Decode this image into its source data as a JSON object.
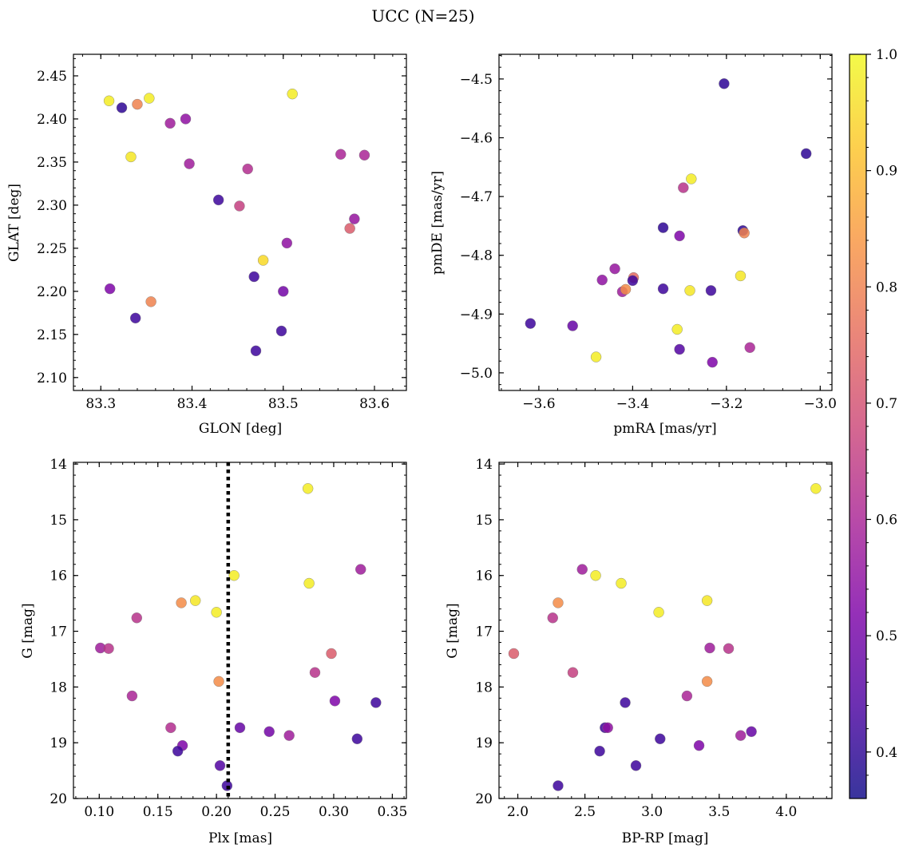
{
  "title": "UCC (N=25)",
  "colorbar": {
    "vmin": 0.36,
    "vmax": 1.0,
    "ticks": [
      "0.4",
      "0.5",
      "0.6",
      "0.7",
      "0.8",
      "0.9",
      "1.0"
    ],
    "tick_values": [
      0.4,
      0.5,
      0.6,
      0.7,
      0.8,
      0.9,
      1.0
    ],
    "colormap": "plasma"
  },
  "chart_data": [
    {
      "type": "scatter",
      "xlabel": "GLON [deg]",
      "ylabel": "GLAT [deg]",
      "xlim": [
        83.27,
        83.635
      ],
      "ylim": [
        2.085,
        2.475
      ],
      "xticks": [
        83.3,
        83.4,
        83.5,
        83.6
      ],
      "xtick_labels": [
        "83.3",
        "83.4",
        "83.5",
        "83.6"
      ],
      "yticks": [
        2.1,
        2.15,
        2.2,
        2.25,
        2.3,
        2.35,
        2.4,
        2.45
      ],
      "ytick_labels": [
        "2.10",
        "2.15",
        "2.20",
        "2.25",
        "2.30",
        "2.35",
        "2.40",
        "2.45"
      ],
      "x": [
        83.309,
        83.323,
        83.34,
        83.353,
        83.333,
        83.376,
        83.393,
        83.397,
        83.31,
        83.338,
        83.355,
        83.429,
        83.452,
        83.461,
        83.468,
        83.47,
        83.478,
        83.498,
        83.5,
        83.504,
        83.51,
        83.563,
        83.573,
        83.578,
        83.589
      ],
      "y": [
        2.421,
        2.413,
        2.417,
        2.424,
        2.356,
        2.395,
        2.4,
        2.348,
        2.203,
        2.169,
        2.188,
        2.306,
        2.299,
        2.342,
        2.217,
        2.131,
        2.236,
        2.154,
        2.2,
        2.256,
        2.429,
        2.359,
        2.273,
        2.284,
        2.358
      ],
      "c": [
        0.98,
        0.4,
        0.8,
        0.98,
        0.97,
        0.58,
        0.55,
        0.58,
        0.52,
        0.42,
        0.8,
        0.42,
        0.66,
        0.62,
        0.42,
        0.42,
        0.95,
        0.42,
        0.5,
        0.55,
        0.98,
        0.6,
        0.72,
        0.56,
        0.6
      ]
    },
    {
      "type": "scatter",
      "xlabel": "pmRA [mas/yr]",
      "ylabel": "pmDE [mas/yr]",
      "xlim": [
        -3.685,
        -2.975
      ],
      "ylim": [
        -5.03,
        -4.458
      ],
      "xticks": [
        -3.6,
        -3.4,
        -3.2,
        -3.0
      ],
      "xtick_labels": [
        "−3.6",
        "−3.4",
        "−3.2",
        "−3.0"
      ],
      "yticks": [
        -5.0,
        -4.9,
        -4.8,
        -4.7,
        -4.6,
        -4.5
      ],
      "ytick_labels": [
        "−5.0",
        "−4.9",
        "−4.8",
        "−4.7",
        "−4.6",
        "−4.5"
      ],
      "x": [
        -3.205,
        -3.03,
        -3.275,
        -3.292,
        -3.165,
        -3.162,
        -3.335,
        -3.3,
        -3.438,
        -3.465,
        -3.422,
        -3.415,
        -3.398,
        -3.4,
        -3.335,
        -3.278,
        -3.233,
        -3.17,
        -3.618,
        -3.528,
        -3.305,
        -3.478,
        -3.3,
        -3.23,
        -3.15
      ],
      "y": [
        -4.508,
        -4.627,
        -4.67,
        -4.685,
        -4.758,
        -4.762,
        -4.753,
        -4.767,
        -4.823,
        -4.842,
        -4.862,
        -4.858,
        -4.838,
        -4.843,
        -4.857,
        -4.86,
        -4.86,
        -4.835,
        -4.916,
        -4.92,
        -4.926,
        -4.973,
        -4.96,
        -4.982,
        -4.957
      ],
      "c": [
        0.4,
        0.4,
        0.98,
        0.63,
        0.4,
        0.8,
        0.4,
        0.52,
        0.56,
        0.55,
        0.58,
        0.82,
        0.75,
        0.42,
        0.42,
        0.97,
        0.42,
        0.97,
        0.42,
        0.48,
        0.98,
        0.98,
        0.45,
        0.52,
        0.6
      ]
    },
    {
      "type": "scatter",
      "xlabel": "Plx [mas]",
      "ylabel": "G [mag]",
      "xlim": [
        0.078,
        0.362
      ],
      "ylim": [
        20.0,
        13.97
      ],
      "y_inverted": true,
      "xticks": [
        0.1,
        0.15,
        0.2,
        0.25,
        0.3,
        0.35
      ],
      "xtick_labels": [
        "0.10",
        "0.15",
        "0.20",
        "0.25",
        "0.30",
        "0.35"
      ],
      "yticks": [
        14,
        15,
        16,
        17,
        18,
        19,
        20
      ],
      "ytick_labels": [
        "14",
        "15",
        "16",
        "17",
        "18",
        "19",
        "20"
      ],
      "vline": 0.21,
      "x": [
        0.278,
        0.323,
        0.215,
        0.279,
        0.182,
        0.17,
        0.2,
        0.132,
        0.101,
        0.108,
        0.298,
        0.284,
        0.202,
        0.128,
        0.301,
        0.336,
        0.161,
        0.22,
        0.245,
        0.262,
        0.171,
        0.167,
        0.32,
        0.203,
        0.209
      ],
      "y": [
        14.44,
        15.89,
        16.0,
        16.14,
        16.45,
        16.49,
        16.66,
        16.76,
        17.3,
        17.31,
        17.4,
        17.74,
        17.9,
        18.16,
        18.25,
        18.28,
        18.73,
        18.73,
        18.8,
        18.87,
        19.05,
        19.15,
        18.93,
        19.41,
        19.77
      ],
      "c": [
        0.98,
        0.58,
        0.98,
        0.98,
        0.97,
        0.82,
        0.98,
        0.63,
        0.58,
        0.63,
        0.72,
        0.63,
        0.82,
        0.6,
        0.52,
        0.42,
        0.62,
        0.48,
        0.5,
        0.58,
        0.52,
        0.42,
        0.42,
        0.45,
        0.42
      ]
    },
    {
      "type": "scatter",
      "xlabel": "BP-RP [mag]",
      "ylabel": "G [mag]",
      "xlim": [
        1.86,
        4.34
      ],
      "ylim": [
        20.0,
        13.97
      ],
      "y_inverted": true,
      "xticks": [
        2.0,
        2.5,
        3.0,
        3.5,
        4.0
      ],
      "xtick_labels": [
        "2.0",
        "2.5",
        "3.0",
        "3.5",
        "4.0"
      ],
      "yticks": [
        14,
        15,
        16,
        17,
        18,
        19,
        20
      ],
      "ytick_labels": [
        "14",
        "15",
        "16",
        "17",
        "18",
        "19",
        "20"
      ],
      "x": [
        4.22,
        2.48,
        2.58,
        2.77,
        3.41,
        2.3,
        3.05,
        2.26,
        3.43,
        3.57,
        1.97,
        2.41,
        3.41,
        3.26,
        2.8,
        2.65,
        2.67,
        3.74,
        3.66,
        3.06,
        3.35,
        2.61,
        2.88,
        2.3
      ],
      "y": [
        14.44,
        15.89,
        16.0,
        16.14,
        16.45,
        16.49,
        16.66,
        16.76,
        17.3,
        17.31,
        17.4,
        17.74,
        17.9,
        18.16,
        18.28,
        18.73,
        18.73,
        18.8,
        18.87,
        18.93,
        19.05,
        19.15,
        19.41,
        19.77
      ],
      "c": [
        0.98,
        0.58,
        0.98,
        0.98,
        0.97,
        0.82,
        0.98,
        0.63,
        0.58,
        0.63,
        0.72,
        0.66,
        0.82,
        0.6,
        0.42,
        0.42,
        0.55,
        0.48,
        0.58,
        0.42,
        0.52,
        0.42,
        0.42,
        0.42
      ]
    }
  ]
}
